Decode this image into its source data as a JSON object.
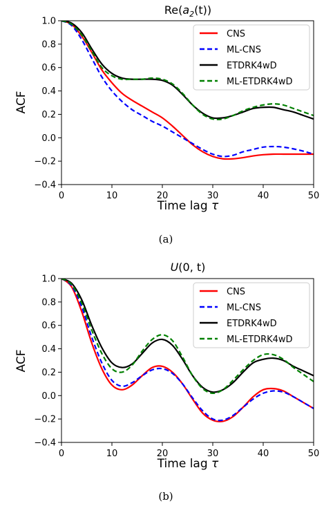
{
  "chart_data": [
    {
      "type": "line",
      "title_prefix": "Re(",
      "title_math": "a",
      "title_sub": "2",
      "title_suffix": "(t))",
      "xlabel": "Time lag",
      "xlabel_symbol": "τ",
      "ylabel": "ACF",
      "xlim": [
        0,
        50
      ],
      "ylim": [
        -0.4,
        1.0
      ],
      "xticks": [
        0,
        10,
        20,
        30,
        40,
        50
      ],
      "yticks": [
        -0.4,
        -0.2,
        0.0,
        0.2,
        0.4,
        0.6,
        0.8,
        1.0
      ],
      "yticklabels": [
        "−0.4",
        "−0.2",
        "0.0",
        "0.2",
        "0.4",
        "0.6",
        "0.8",
        "1.0"
      ],
      "grid": false,
      "legend": "top-right",
      "caption": "(a)",
      "x": [
        0,
        2,
        4,
        6,
        8,
        10,
        12,
        14,
        16,
        18,
        20,
        22,
        24,
        26,
        28,
        30,
        32,
        34,
        36,
        38,
        40,
        42,
        44,
        46,
        48,
        50
      ],
      "series": [
        {
          "name": "CNS",
          "color": "#ff0000",
          "dash": "solid",
          "values": [
            1.0,
            0.97,
            0.87,
            0.73,
            0.58,
            0.47,
            0.38,
            0.32,
            0.27,
            0.22,
            0.17,
            0.1,
            0.02,
            -0.06,
            -0.12,
            -0.16,
            -0.18,
            -0.18,
            -0.17,
            -0.155,
            -0.145,
            -0.14,
            -0.14,
            -0.14,
            -0.14,
            -0.14
          ]
        },
        {
          "name": "ML-CNS",
          "color": "#0000ff",
          "dash": "dashed",
          "values": [
            1.0,
            0.96,
            0.84,
            0.68,
            0.52,
            0.4,
            0.31,
            0.24,
            0.19,
            0.14,
            0.1,
            0.05,
            0.0,
            -0.05,
            -0.1,
            -0.14,
            -0.16,
            -0.15,
            -0.12,
            -0.1,
            -0.08,
            -0.075,
            -0.08,
            -0.095,
            -0.115,
            -0.14
          ]
        },
        {
          "name": "ETDRK4wD",
          "color": "#000000",
          "dash": "solid",
          "values": [
            1.0,
            0.98,
            0.9,
            0.76,
            0.63,
            0.55,
            0.51,
            0.5,
            0.5,
            0.5,
            0.49,
            0.45,
            0.37,
            0.28,
            0.21,
            0.17,
            0.17,
            0.19,
            0.22,
            0.25,
            0.26,
            0.26,
            0.24,
            0.22,
            0.19,
            0.16
          ]
        },
        {
          "name": "ML-ETDRK4wD",
          "color": "#008000",
          "dash": "dashed",
          "values": [
            1.0,
            0.97,
            0.88,
            0.74,
            0.6,
            0.53,
            0.5,
            0.5,
            0.5,
            0.51,
            0.5,
            0.46,
            0.38,
            0.28,
            0.2,
            0.16,
            0.16,
            0.19,
            0.23,
            0.26,
            0.28,
            0.29,
            0.28,
            0.25,
            0.22,
            0.19
          ]
        }
      ]
    },
    {
      "type": "line",
      "title_prefix": "",
      "title_math": "U",
      "title_sub": "",
      "title_suffix": "(0, t)",
      "xlabel": "Time lag",
      "xlabel_symbol": "τ",
      "ylabel": "ACF",
      "xlim": [
        0,
        50
      ],
      "ylim": [
        -0.4,
        1.0
      ],
      "xticks": [
        0,
        10,
        20,
        30,
        40,
        50
      ],
      "yticks": [
        -0.4,
        -0.2,
        0.0,
        0.2,
        0.4,
        0.6,
        0.8,
        1.0
      ],
      "yticklabels": [
        "−0.4",
        "−0.2",
        "0.0",
        "0.2",
        "0.4",
        "0.6",
        "0.8",
        "1.0"
      ],
      "grid": false,
      "legend": "top-right",
      "caption": "(b)",
      "x": [
        0,
        2,
        4,
        6,
        8,
        10,
        12,
        14,
        16,
        18,
        20,
        22,
        24,
        26,
        28,
        30,
        32,
        34,
        36,
        38,
        40,
        42,
        44,
        46,
        48,
        50
      ],
      "series": [
        {
          "name": "CNS",
          "color": "#ff0000",
          "dash": "solid",
          "values": [
            1.0,
            0.93,
            0.72,
            0.45,
            0.23,
            0.09,
            0.05,
            0.09,
            0.17,
            0.24,
            0.25,
            0.2,
            0.1,
            -0.03,
            -0.15,
            -0.21,
            -0.22,
            -0.18,
            -0.1,
            -0.01,
            0.05,
            0.06,
            0.04,
            -0.01,
            -0.06,
            -0.11
          ]
        },
        {
          "name": "ML-CNS",
          "color": "#0000ff",
          "dash": "dashed",
          "values": [
            1.0,
            0.94,
            0.76,
            0.5,
            0.28,
            0.13,
            0.08,
            0.11,
            0.17,
            0.22,
            0.23,
            0.19,
            0.1,
            -0.02,
            -0.13,
            -0.2,
            -0.21,
            -0.17,
            -0.1,
            -0.03,
            0.02,
            0.04,
            0.03,
            -0.01,
            -0.06,
            -0.11
          ]
        },
        {
          "name": "ETDRK4wD",
          "color": "#000000",
          "dash": "solid",
          "values": [
            1.0,
            0.96,
            0.82,
            0.6,
            0.41,
            0.28,
            0.24,
            0.27,
            0.36,
            0.45,
            0.48,
            0.43,
            0.31,
            0.17,
            0.07,
            0.03,
            0.05,
            0.11,
            0.2,
            0.28,
            0.31,
            0.32,
            0.3,
            0.25,
            0.21,
            0.17
          ]
        },
        {
          "name": "ML-ETDRK4wD",
          "color": "#008000",
          "dash": "dashed",
          "values": [
            1.0,
            0.95,
            0.79,
            0.56,
            0.36,
            0.23,
            0.2,
            0.26,
            0.38,
            0.48,
            0.52,
            0.47,
            0.33,
            0.17,
            0.06,
            0.02,
            0.05,
            0.13,
            0.22,
            0.3,
            0.35,
            0.35,
            0.31,
            0.24,
            0.18,
            0.12
          ]
        }
      ]
    }
  ]
}
